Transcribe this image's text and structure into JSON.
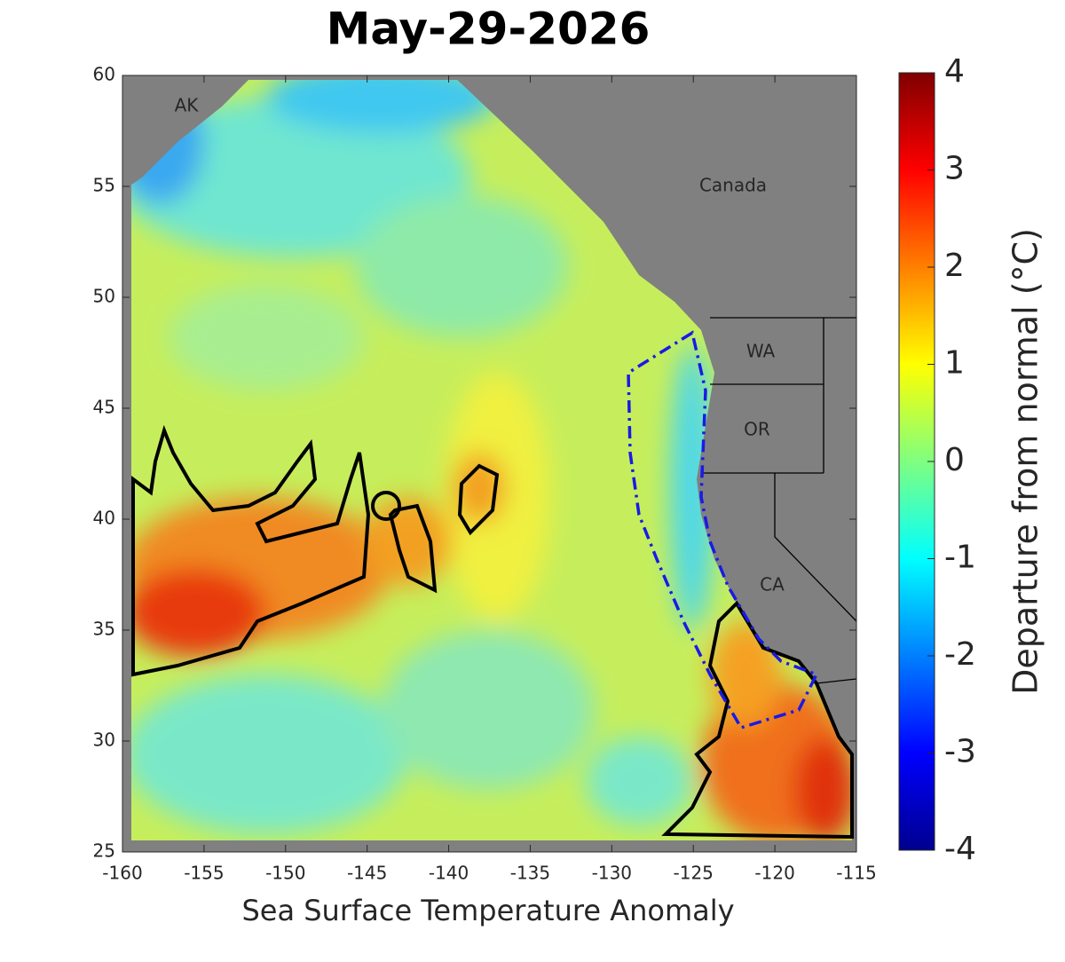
{
  "title": "May-29-2026",
  "xlabel": "Sea Surface Temperature Anomaly",
  "map": {
    "xlim": [
      -160,
      -115
    ],
    "ylim": [
      25,
      60
    ],
    "xticks": [
      -160,
      -155,
      -150,
      -145,
      -140,
      -135,
      -130,
      -125,
      -120,
      -115
    ],
    "yticks": [
      25,
      30,
      35,
      40,
      45,
      50,
      55,
      60
    ],
    "region_labels": [
      "AK",
      "Canada",
      "WA",
      "OR",
      "CA"
    ]
  },
  "colorbar": {
    "label": "Departure from normal (°C)",
    "lim": [
      -4,
      4
    ],
    "ticks": [
      -4,
      -3,
      -2,
      -1,
      0,
      1,
      2,
      3,
      4
    ],
    "colormap": "jet"
  }
}
